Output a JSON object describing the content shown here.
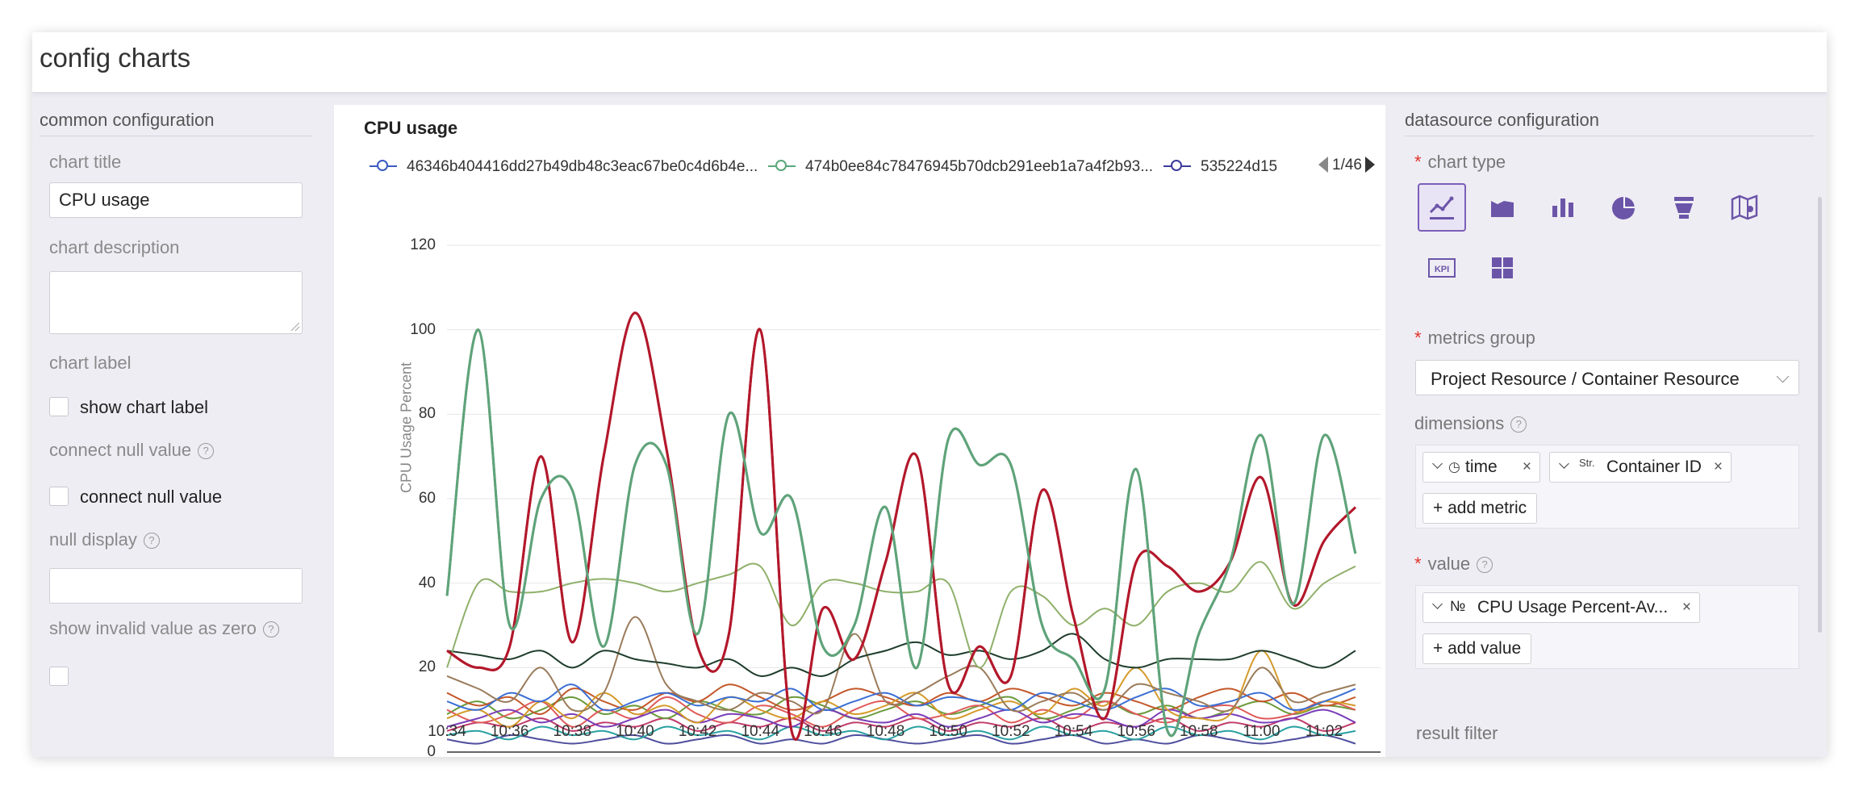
{
  "header": {
    "title": "config charts"
  },
  "left": {
    "section_title": "common configuration",
    "chart_title_label": "chart title",
    "chart_title_value": "CPU usage",
    "chart_description_label": "chart description",
    "chart_description_value": "",
    "chart_label_label": "chart label",
    "show_chart_label": "show chart label",
    "connect_null_label": "connect null value",
    "connect_null_checkbox": "connect null value",
    "null_display_label": "null display",
    "null_display_value": "",
    "invalid_zero_label": "show invalid value as zero",
    "help_glyph": "?"
  },
  "chart_card": {
    "title": "CPU usage",
    "legend": [
      {
        "name": "46346b404416dd27b49db48c3eac67be0c4d6b4e...",
        "color": "#3b5bbf"
      },
      {
        "name": "474b0ee84c78476945b70dcb291eeb1a7a4f2b93...",
        "color": "#5aa87a"
      },
      {
        "name": "535224d15",
        "color": "#3b3b9c"
      }
    ],
    "pager": "1/46"
  },
  "chart_data": {
    "type": "line",
    "title": "CPU usage",
    "xlabel": "",
    "ylabel": "CPU Usage Percent",
    "ylim": [
      0,
      120
    ],
    "yticks": [
      0,
      20,
      40,
      60,
      80,
      100,
      120
    ],
    "grid": true,
    "legend_placement": "top",
    "x": [
      "10:34",
      "10:35",
      "10:36",
      "10:37",
      "10:38",
      "10:39",
      "10:40",
      "10:41",
      "10:42",
      "10:43",
      "10:44",
      "10:45",
      "10:46",
      "10:47",
      "10:48",
      "10:49",
      "10:50",
      "10:51",
      "10:52",
      "10:53",
      "10:54",
      "10:55",
      "10:56",
      "10:57",
      "10:58",
      "10:59",
      "11:00",
      "11:01",
      "11:02",
      "11:03"
    ],
    "xticks": [
      "10:34",
      "10:36",
      "10:38",
      "10:40",
      "10:42",
      "10:44",
      "10:46",
      "10:48",
      "10:50",
      "10:52",
      "10:54",
      "10:56",
      "10:58",
      "11:00",
      "11:02"
    ],
    "series": [
      {
        "color": "#5fa37a",
        "values": [
          37,
          100,
          30,
          60,
          62,
          25,
          68,
          68,
          28,
          80,
          52,
          60,
          25,
          30,
          58,
          20,
          74,
          68,
          68,
          30,
          22,
          15,
          67,
          5,
          28,
          45,
          75,
          35,
          75,
          47
        ]
      },
      {
        "color": "#b3182b",
        "values": [
          24,
          20,
          25,
          70,
          26,
          70,
          104,
          72,
          25,
          28,
          100,
          5,
          34,
          22,
          45,
          70,
          16,
          25,
          18,
          62,
          32,
          8,
          45,
          44,
          38,
          45,
          65,
          35,
          50,
          58
        ]
      },
      {
        "color": "#8fb06a",
        "values": [
          20,
          40,
          38,
          38,
          40,
          41,
          40,
          38,
          40,
          42,
          44,
          30,
          40,
          40,
          38,
          38,
          40,
          20,
          38,
          37,
          30,
          34,
          30,
          38,
          40,
          38,
          45,
          34,
          40,
          44
        ]
      },
      {
        "color": "#1f3d2c",
        "values": [
          24,
          23,
          22,
          24,
          20,
          24,
          22,
          21,
          20,
          22,
          18,
          20,
          18,
          22,
          24,
          26,
          23,
          24,
          22,
          24,
          28,
          22,
          20,
          22,
          22,
          22,
          24,
          22,
          20,
          24
        ]
      },
      {
        "color": "#9a7b5a",
        "values": [
          18,
          15,
          12,
          20,
          10,
          14,
          32,
          16,
          12,
          10,
          14,
          12,
          10,
          28,
          12,
          14,
          18,
          20,
          10,
          12,
          14,
          10,
          16,
          14,
          12,
          10,
          20,
          12,
          14,
          16
        ]
      },
      {
        "color": "#3b6fd4",
        "values": [
          12,
          10,
          14,
          12,
          16,
          10,
          12,
          14,
          11,
          13,
          12,
          15,
          10,
          12,
          14,
          11,
          13,
          12,
          10,
          14,
          12,
          10,
          13,
          15,
          11,
          12,
          14,
          10,
          12,
          15
        ]
      },
      {
        "color": "#d49a2a",
        "values": [
          8,
          10,
          6,
          12,
          8,
          14,
          9,
          11,
          7,
          13,
          10,
          8,
          12,
          9,
          11,
          14,
          8,
          10,
          12,
          9,
          15,
          11,
          20,
          10,
          8,
          9,
          24,
          10,
          12,
          11
        ]
      },
      {
        "color": "#7a3db8",
        "values": [
          6,
          8,
          10,
          7,
          9,
          6,
          8,
          10,
          7,
          9,
          8,
          6,
          10,
          8,
          7,
          9,
          6,
          8,
          10,
          7,
          9,
          8,
          6,
          10,
          8,
          9,
          7,
          8,
          10,
          7
        ]
      },
      {
        "color": "#e05a5a",
        "values": [
          10,
          7,
          9,
          12,
          6,
          10,
          8,
          13,
          9,
          7,
          11,
          9,
          6,
          10,
          12,
          8,
          9,
          11,
          7,
          10,
          8,
          12,
          9,
          7,
          10,
          11,
          8,
          9,
          12,
          10
        ]
      },
      {
        "color": "#2aa1a1",
        "values": [
          4,
          5,
          3,
          6,
          4,
          5,
          3,
          6,
          4,
          5,
          3,
          6,
          4,
          5,
          3,
          6,
          4,
          5,
          3,
          6,
          4,
          5,
          3,
          6,
          4,
          5,
          3,
          6,
          4,
          5
        ]
      },
      {
        "color": "#c4572a",
        "values": [
          14,
          11,
          13,
          9,
          15,
          12,
          10,
          14,
          12,
          16,
          13,
          10,
          12,
          15,
          13,
          11,
          14,
          12,
          15,
          13,
          11,
          14,
          12,
          10,
          13,
          15,
          12,
          14,
          11,
          13
        ]
      },
      {
        "color": "#4e4e9e",
        "values": [
          3,
          2,
          4,
          3,
          2,
          3,
          4,
          2,
          3,
          4,
          2,
          3,
          2,
          4,
          3,
          2,
          3,
          4,
          2,
          3,
          4,
          2,
          3,
          2,
          4,
          3,
          2,
          3,
          4,
          2
        ]
      },
      {
        "color": "#6a9a3a",
        "values": [
          9,
          12,
          8,
          10,
          13,
          9,
          11,
          8,
          12,
          10,
          9,
          13,
          11,
          8,
          10,
          12,
          9,
          11,
          13,
          8,
          10,
          12,
          9,
          11,
          8,
          10,
          12,
          9,
          11,
          10
        ]
      },
      {
        "color": "#c03a6a",
        "values": [
          5,
          7,
          6,
          8,
          5,
          7,
          6,
          8,
          5,
          7,
          6,
          8,
          5,
          7,
          6,
          8,
          5,
          7,
          6,
          8,
          5,
          7,
          6,
          8,
          5,
          7,
          6,
          8,
          5,
          7
        ]
      }
    ]
  },
  "right": {
    "section_title": "datasource configuration",
    "required_mark": "*",
    "chart_type_label": "chart type",
    "chart_types": [
      {
        "icon": "line-chart-icon",
        "active": true
      },
      {
        "icon": "area-chart-icon",
        "active": false
      },
      {
        "icon": "bar-chart-icon",
        "active": false
      },
      {
        "icon": "pie-chart-icon",
        "active": false
      },
      {
        "icon": "funnel-chart-icon",
        "active": false
      },
      {
        "icon": "map-chart-icon",
        "active": false
      },
      {
        "icon": "kpi-icon",
        "active": false,
        "text": "KPI"
      },
      {
        "icon": "table-grid-icon",
        "active": false
      }
    ],
    "metrics_group_label": "metrics group",
    "metrics_group_value": "Project Resource / Container Resource",
    "dimensions_label": "dimensions",
    "dim_time": "time",
    "dim_container": "Container ID",
    "dim_str_prefix": "Str.",
    "add_metric": "+ add metric",
    "value_label": "value",
    "value_prefix": "№",
    "value_tag": "CPU Usage Percent-Av...",
    "add_value": "+ add value",
    "result_filter_label": "result filter",
    "close_glyph": "×",
    "clock_glyph": "◷",
    "help_glyph": "?"
  }
}
